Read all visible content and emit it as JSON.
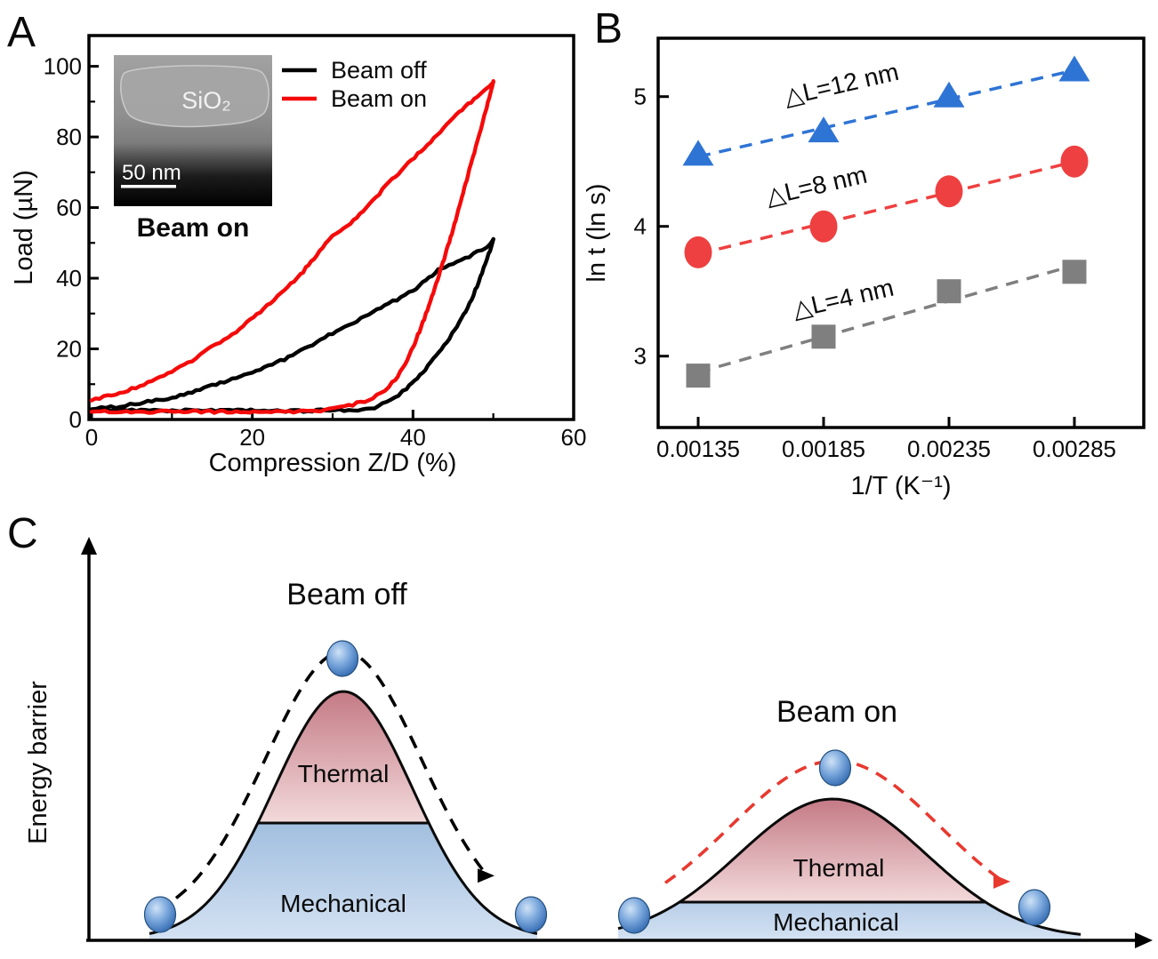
{
  "panels": {
    "a_label": "A",
    "b_label": "B",
    "c_label": "C"
  },
  "colors": {
    "beam_off": "#000000",
    "beam_on": "#f50a0a",
    "series_12nm": "#2e74d4",
    "series_8nm": "#ee4040",
    "series_4nm": "#7f7f7f",
    "thermal_top": "#c47a85",
    "thermal_bottom": "#f2dadb",
    "mechanical_top": "#6898ca",
    "mechanical_bottom": "#d3e1f2",
    "ball_edge": "#2e5e9e",
    "dashed_arrow_red": "#e8392f",
    "dashed_arrow_black": "#000000"
  },
  "panel_a": {
    "xlabel": "Compression Z/D (%)",
    "ylabel": "Load (µN)",
    "legend": [
      {
        "label": "Beam off",
        "color": "#000000"
      },
      {
        "label": "Beam on",
        "color": "#f50a0a"
      }
    ],
    "inset": {
      "material_label": "SiO₂",
      "scalebar_label": "50 nm",
      "caption": "Beam on"
    }
  },
  "panel_b": {
    "xlabel": "1/T (K⁻¹)",
    "ylabel": "ln t (ln s)",
    "annotations": [
      {
        "text": "△L=12 nm"
      },
      {
        "text": "△L=8 nm"
      },
      {
        "text": "△L=4 nm"
      }
    ]
  },
  "panel_c": {
    "ylabel": "Energy barrier",
    "left": {
      "title": "Beam off",
      "thermal_label": "Thermal",
      "mechanical_label": "Mechanical"
    },
    "right": {
      "title": "Beam on",
      "thermal_label": "Thermal",
      "mechanical_label": "Mechanical"
    }
  },
  "chart_data": [
    {
      "type": "line",
      "panel": "A",
      "title": "Load vs compression hysteresis",
      "xlabel": "Compression Z/D (%)",
      "ylabel": "Load (µN)",
      "xlim": [
        0,
        60
      ],
      "ylim": [
        0,
        109
      ],
      "xticks": [
        0,
        20,
        40,
        60
      ],
      "xminorticks": [
        10,
        30,
        50
      ],
      "yticks": [
        0,
        20,
        40,
        60,
        80,
        100
      ],
      "yminorticks": [
        10,
        30,
        50,
        70,
        90
      ],
      "grid": false,
      "legend_position": "top-right",
      "series": [
        {
          "name": "Beam off",
          "color": "#000000",
          "loading": [
            [
              0,
              3
            ],
            [
              3,
              3.6
            ],
            [
              6,
              4.6
            ],
            [
              9,
              5.8
            ],
            [
              12,
              7.4
            ],
            [
              15,
              9.6
            ],
            [
              18,
              11.8
            ],
            [
              21,
              14.2
            ],
            [
              24,
              17
            ],
            [
              27,
              20.5
            ],
            [
              30,
              24.5
            ],
            [
              33,
              28
            ],
            [
              36,
              31.5
            ],
            [
              38,
              34
            ],
            [
              40,
              36.5
            ],
            [
              42,
              40
            ],
            [
              43.5,
              43
            ],
            [
              45,
              44
            ],
            [
              46.5,
              45.5
            ],
            [
              48,
              47.5
            ],
            [
              49.2,
              49
            ],
            [
              50,
              51
            ]
          ],
          "unloading": [
            [
              50,
              51
            ],
            [
              49.6,
              48
            ],
            [
              49,
              44
            ],
            [
              48.2,
              39
            ],
            [
              47.3,
              34
            ],
            [
              46.3,
              29.5
            ],
            [
              45.2,
              25.5
            ],
            [
              44.2,
              22
            ],
            [
              43.2,
              18.8
            ],
            [
              42.2,
              16
            ],
            [
              41.2,
              13.3
            ],
            [
              40.2,
              11
            ],
            [
              39.2,
              8.8
            ],
            [
              38.2,
              7
            ],
            [
              37.2,
              5.6
            ],
            [
              36.2,
              4.4
            ],
            [
              35.2,
              3.4
            ],
            [
              34.2,
              2.8
            ],
            [
              32,
              2.6
            ],
            [
              28,
              2.5
            ],
            [
              22,
              2.5
            ],
            [
              16,
              2.6
            ],
            [
              10,
              2.6
            ],
            [
              5,
              2.7
            ],
            [
              0,
              2.7
            ]
          ]
        },
        {
          "name": "Beam on",
          "color": "#f50a0a",
          "loading": [
            [
              0,
              5.5
            ],
            [
              3,
              7.2
            ],
            [
              6,
              9.5
            ],
            [
              9,
              12.5
            ],
            [
              12,
              16
            ],
            [
              15,
              20.5
            ],
            [
              18,
              25
            ],
            [
              21,
              30.5
            ],
            [
              24,
              36.5
            ],
            [
              26,
              41
            ],
            [
              28,
              46.5
            ],
            [
              29.5,
              51
            ],
            [
              31,
              53.5
            ],
            [
              33,
              57
            ],
            [
              35,
              62
            ],
            [
              37,
              67
            ],
            [
              39,
              71.5
            ],
            [
              41,
              76
            ],
            [
              43,
              80.5
            ],
            [
              45,
              85.5
            ],
            [
              46.5,
              88.5
            ],
            [
              48,
              91.5
            ],
            [
              49,
              93.5
            ],
            [
              50,
              95.5
            ]
          ],
          "unloading": [
            [
              50,
              95.5
            ],
            [
              49.5,
              91
            ],
            [
              49,
              87
            ],
            [
              48.3,
              81
            ],
            [
              47.5,
              74.5
            ],
            [
              46.7,
              68
            ],
            [
              45.8,
              60.5
            ],
            [
              45,
              54
            ],
            [
              44.2,
              48
            ],
            [
              43.4,
              42
            ],
            [
              42.7,
              37
            ],
            [
              42,
              32.5
            ],
            [
              41.4,
              28.5
            ],
            [
              40.8,
              25
            ],
            [
              40.2,
              21.5
            ],
            [
              39.6,
              18.5
            ],
            [
              39,
              15.8
            ],
            [
              38.4,
              13.4
            ],
            [
              37.8,
              11.4
            ],
            [
              37,
              9.2
            ],
            [
              36,
              7.4
            ],
            [
              35,
              6.2
            ],
            [
              34,
              5.2
            ],
            [
              32.5,
              4.2
            ],
            [
              31,
              3.4
            ],
            [
              29.5,
              2.8
            ],
            [
              28,
              2.4
            ],
            [
              24,
              2.2
            ],
            [
              18,
              2.2
            ],
            [
              12,
              2.2
            ],
            [
              6,
              2.2
            ],
            [
              0,
              2.2
            ]
          ]
        }
      ]
    },
    {
      "type": "scatter",
      "panel": "B",
      "title": "Relaxation time vs inverse temperature",
      "xlabel": "1/T (K⁻¹)",
      "ylabel": "ln t (ln s)",
      "xlim": [
        0.00119,
        0.00288
      ],
      "ylim": [
        2.45,
        5.45
      ],
      "xticks": [
        0.00135,
        0.00185,
        0.00235,
        0.00285
      ],
      "xtick_labels": [
        "0.00135",
        "0.00185",
        "0.00235",
        "0.00285"
      ],
      "yticks": [
        3,
        4,
        5
      ],
      "grid": false,
      "x": [
        0.00135,
        0.00185,
        0.00235,
        0.00285
      ],
      "series": [
        {
          "name": "ΔL=12 nm",
          "marker": "triangle",
          "color": "#2e74d4",
          "line_style": "dashed",
          "values": [
            4.55,
            4.73,
            5.0,
            5.2
          ]
        },
        {
          "name": "ΔL=8 nm",
          "marker": "circle",
          "color": "#ee4040",
          "line_style": "dashed",
          "values": [
            3.8,
            4.0,
            4.27,
            4.5
          ]
        },
        {
          "name": "ΔL=4 nm",
          "marker": "square",
          "color": "#7f7f7f",
          "line_style": "dashed",
          "values": [
            2.85,
            3.15,
            3.5,
            3.65
          ]
        }
      ]
    }
  ]
}
